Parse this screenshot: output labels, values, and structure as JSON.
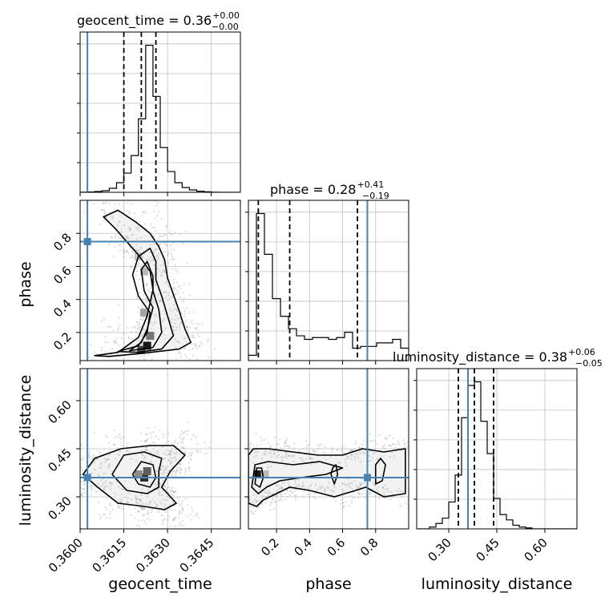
{
  "colors": {
    "truth": "#4682b4",
    "hist": "#000000",
    "grid": "#c0c0c0",
    "scatter": "#9a9a9a",
    "fill": "#f2f2f2"
  },
  "chart_data": {
    "type": "corner",
    "parameters": [
      "geocent_time",
      "phase",
      "luminosity_distance"
    ],
    "truths": {
      "geocent_time": 0.36025,
      "phase": 0.75,
      "luminosity_distance": 0.36
    },
    "titles": [
      {
        "param": "geocent_time",
        "label": "geocent_time = 0.36",
        "plus": "+0.00",
        "minus": "−0.00"
      },
      {
        "param": "phase",
        "label": "phase = 0.28",
        "plus": "+0.41",
        "minus": "−0.19"
      },
      {
        "param": "luminosity_distance",
        "label": "luminosity_distance = 0.38",
        "plus": "+0.06",
        "minus": "−0.05"
      }
    ],
    "axes": {
      "geocent_time": {
        "range": [
          0.36,
          0.3655
        ],
        "ticks": [
          0.36,
          0.3615,
          0.363,
          0.3645
        ],
        "tick_labels": [
          "0.3600",
          "0.3615",
          "0.3630",
          "0.3645"
        ]
      },
      "phase": {
        "range": [
          0.03,
          1.0
        ],
        "ticks": [
          0.2,
          0.4,
          0.6,
          0.8
        ],
        "tick_labels": [
          "0.2",
          "0.4",
          "0.6",
          "0.8"
        ]
      },
      "luminosity_distance": {
        "range": [
          0.2,
          0.7
        ],
        "ticks": [
          0.3,
          0.45,
          0.6
        ],
        "tick_labels": [
          "0.30",
          "0.45",
          "0.60"
        ]
      }
    },
    "histograms": {
      "geocent_time": {
        "edges": [
          0.36,
          0.36025,
          0.3605,
          0.36075,
          0.361,
          0.36125,
          0.3615,
          0.36175,
          0.362,
          0.36225,
          0.3625,
          0.36275,
          0.363,
          0.36325,
          0.3635,
          0.36375,
          0.364,
          0.36425,
          0.3645,
          0.36475,
          0.365,
          0.3655
        ],
        "counts": [
          0.1,
          0.2,
          0.5,
          1,
          2.5,
          6,
          12,
          23,
          46,
          92,
          60,
          28,
          13,
          6,
          3,
          1.5,
          0.7,
          0.3,
          0.1,
          0,
          0
        ],
        "quantiles": [
          0.3615,
          0.3621,
          0.3626
        ]
      },
      "phase": {
        "edges": [
          0.03,
          0.0785,
          0.127,
          0.1755,
          0.224,
          0.2725,
          0.321,
          0.3695,
          0.418,
          0.4665,
          0.515,
          0.5635,
          0.612,
          0.6605,
          0.709,
          0.7575,
          0.806,
          0.8545,
          0.903,
          0.9515,
          1.0
        ],
        "counts": [
          3,
          83,
          60,
          35,
          25,
          18,
          14,
          12,
          13,
          13,
          12,
          13,
          16,
          7,
          8,
          8,
          10,
          10,
          12,
          7
        ],
        "quantiles": [
          0.09,
          0.28,
          0.69
        ]
      },
      "luminosity_distance": {
        "edges": [
          0.2,
          0.22,
          0.24,
          0.26,
          0.28,
          0.3,
          0.32,
          0.34,
          0.36,
          0.38,
          0.4,
          0.42,
          0.44,
          0.46,
          0.48,
          0.5,
          0.52,
          0.54,
          0.56,
          0.58,
          0.6,
          0.62,
          0.64,
          0.66,
          0.68,
          0.7
        ],
        "counts": [
          0,
          0,
          1,
          3,
          6,
          15,
          30,
          62,
          80,
          82,
          60,
          42,
          17,
          8,
          5,
          2,
          1,
          0.5,
          0,
          0,
          0,
          0,
          0,
          0,
          0
        ],
        "quantiles": [
          0.33,
          0.38,
          0.44
        ]
      }
    },
    "panels": [
      {
        "x": "geocent_time",
        "y": "phase",
        "blocks": [
          [
            0.3621,
            0.095,
            0.8
          ],
          [
            0.3623,
            0.12,
            1
          ],
          [
            0.3624,
            0.18,
            0.6
          ],
          [
            0.3622,
            0.32,
            0.4
          ],
          [
            0.3622,
            0.57,
            0.3
          ],
          [
            0.362,
            0.66,
            0.25
          ]
        ],
        "contours": [
          [
            [
              0.3605,
              0.06
            ],
            [
              0.3613,
              0.08
            ],
            [
              0.362,
              0.17
            ],
            [
              0.3623,
              0.3
            ],
            [
              0.3624,
              0.38
            ],
            [
              0.3625,
              0.46
            ],
            [
              0.3624,
              0.57
            ],
            [
              0.362,
              0.67
            ],
            [
              0.3616,
              0.75
            ],
            [
              0.3612,
              0.83
            ],
            [
              0.3608,
              0.9
            ],
            [
              0.3613,
              0.94
            ],
            [
              0.3619,
              0.87
            ],
            [
              0.3624,
              0.8
            ],
            [
              0.3627,
              0.72
            ],
            [
              0.3629,
              0.64
            ],
            [
              0.363,
              0.53
            ],
            [
              0.3632,
              0.43
            ],
            [
              0.3634,
              0.33
            ],
            [
              0.3636,
              0.22
            ],
            [
              0.3638,
              0.14
            ],
            [
              0.3634,
              0.1
            ],
            [
              0.3622,
              0.075
            ],
            [
              0.361,
              0.055
            ]
          ],
          [
            [
              0.3613,
              0.085
            ],
            [
              0.362,
              0.12
            ],
            [
              0.3623,
              0.2
            ],
            [
              0.3624,
              0.32
            ],
            [
              0.362,
              0.42
            ],
            [
              0.3618,
              0.55
            ],
            [
              0.362,
              0.66
            ],
            [
              0.3624,
              0.71
            ],
            [
              0.3626,
              0.63
            ],
            [
              0.3626,
              0.52
            ],
            [
              0.3628,
              0.42
            ],
            [
              0.363,
              0.3
            ],
            [
              0.3632,
              0.18
            ],
            [
              0.3628,
              0.1
            ],
            [
              0.362,
              0.08
            ]
          ],
          [
            [
              0.3617,
              0.09
            ],
            [
              0.3621,
              0.14
            ],
            [
              0.3623,
              0.22
            ],
            [
              0.3625,
              0.35
            ],
            [
              0.3622,
              0.45
            ],
            [
              0.3621,
              0.58
            ],
            [
              0.3623,
              0.63
            ],
            [
              0.3625,
              0.54
            ],
            [
              0.3625,
              0.45
            ],
            [
              0.3627,
              0.34
            ],
            [
              0.3628,
              0.2
            ],
            [
              0.3625,
              0.11
            ]
          ]
        ]
      },
      {
        "x": "geocent_time",
        "y": "luminosity_distance",
        "blocks": [
          [
            0.3622,
            0.36,
            0.9
          ],
          [
            0.3623,
            0.38,
            0.7
          ],
          [
            0.362,
            0.37,
            0.5
          ]
        ],
        "contours": [
          [
            [
              0.3601,
              0.37
            ],
            [
              0.3606,
              0.33
            ],
            [
              0.3613,
              0.28
            ],
            [
              0.3622,
              0.27
            ],
            [
              0.3629,
              0.26
            ],
            [
              0.3633,
              0.28
            ],
            [
              0.3628,
              0.33
            ],
            [
              0.3631,
              0.38
            ],
            [
              0.3636,
              0.43
            ],
            [
              0.3632,
              0.46
            ],
            [
              0.3624,
              0.46
            ],
            [
              0.3614,
              0.45
            ],
            [
              0.3605,
              0.42
            ]
          ],
          [
            [
              0.3611,
              0.37
            ],
            [
              0.3616,
              0.32
            ],
            [
              0.3623,
              0.31
            ],
            [
              0.3627,
              0.33
            ],
            [
              0.3627,
              0.38
            ],
            [
              0.3628,
              0.42
            ],
            [
              0.3622,
              0.44
            ],
            [
              0.3615,
              0.43
            ]
          ],
          [
            [
              0.3618,
              0.37
            ],
            [
              0.362,
              0.34
            ],
            [
              0.3624,
              0.33
            ],
            [
              0.3626,
              0.36
            ],
            [
              0.3625,
              0.4
            ],
            [
              0.3621,
              0.41
            ]
          ]
        ]
      },
      {
        "x": "phase",
        "y": "luminosity_distance",
        "blocks": [
          [
            0.09,
            0.37,
            1
          ],
          [
            0.13,
            0.37,
            0.3
          ]
        ],
        "contours": [
          [
            [
              0.03,
              0.28
            ],
            [
              0.08,
              0.27
            ],
            [
              0.12,
              0.29
            ],
            [
              0.2,
              0.31
            ],
            [
              0.28,
              0.33
            ],
            [
              0.4,
              0.32
            ],
            [
              0.55,
              0.3
            ],
            [
              0.68,
              0.32
            ],
            [
              0.74,
              0.33
            ],
            [
              0.85,
              0.3
            ],
            [
              0.98,
              0.31
            ],
            [
              0.98,
              0.45
            ],
            [
              0.85,
              0.44
            ],
            [
              0.72,
              0.45
            ],
            [
              0.6,
              0.43
            ],
            [
              0.45,
              0.43
            ],
            [
              0.3,
              0.44
            ],
            [
              0.15,
              0.45
            ],
            [
              0.06,
              0.45
            ],
            [
              0.03,
              0.43
            ]
          ],
          [
            [
              0.05,
              0.33
            ],
            [
              0.09,
              0.31
            ],
            [
              0.14,
              0.33
            ],
            [
              0.22,
              0.35
            ],
            [
              0.35,
              0.36
            ],
            [
              0.5,
              0.37
            ],
            [
              0.6,
              0.39
            ],
            [
              0.46,
              0.41
            ],
            [
              0.3,
              0.4
            ],
            [
              0.15,
              0.41
            ],
            [
              0.07,
              0.4
            ]
          ],
          [
            [
              0.07,
              0.34
            ],
            [
              0.1,
              0.33
            ],
            [
              0.12,
              0.36
            ],
            [
              0.11,
              0.39
            ],
            [
              0.08,
              0.39
            ]
          ],
          [
            [
              0.53,
              0.37
            ],
            [
              0.55,
              0.34
            ],
            [
              0.57,
              0.37
            ],
            [
              0.56,
              0.4
            ],
            [
              0.54,
              0.39
            ]
          ],
          [
            [
              0.8,
              0.34
            ],
            [
              0.84,
              0.35
            ],
            [
              0.86,
              0.4
            ],
            [
              0.83,
              0.42
            ],
            [
              0.8,
              0.4
            ]
          ]
        ]
      }
    ]
  }
}
